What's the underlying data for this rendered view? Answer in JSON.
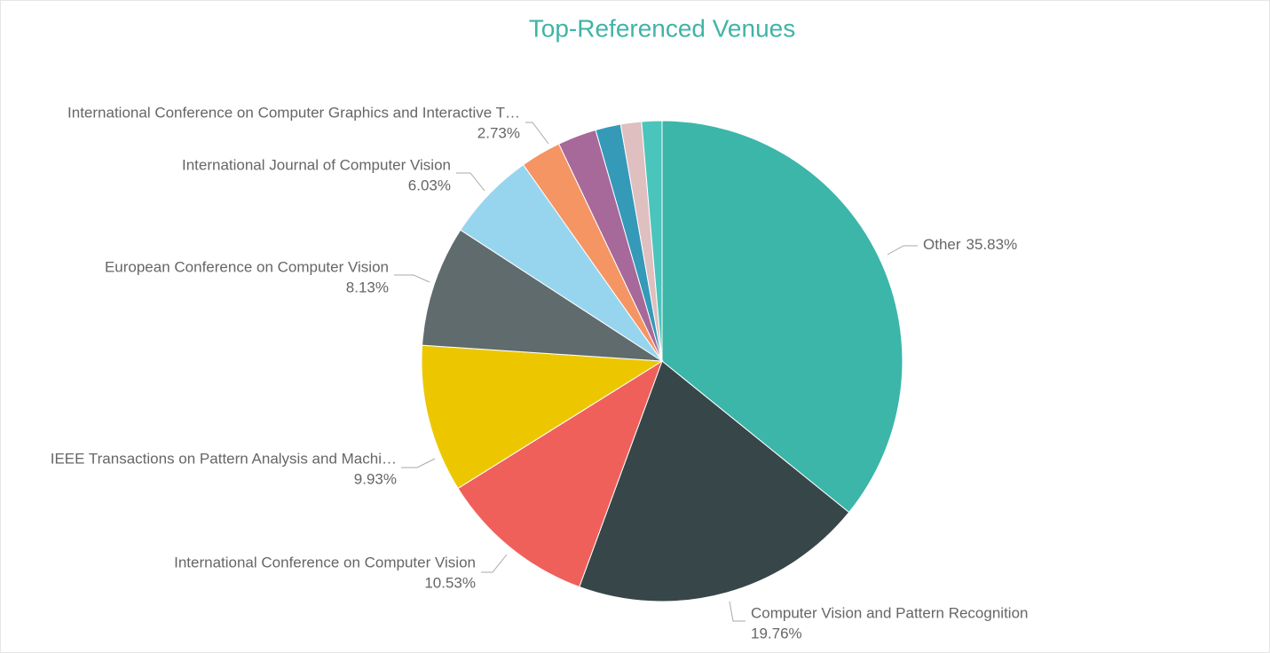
{
  "chart_data": {
    "type": "pie",
    "title": "Top-Referenced Venues",
    "categories": [
      "Other",
      "Computer Vision and Pattern Recognition",
      "International Conference on Computer Vision",
      "IEEE Transactions on Pattern Analysis and Machi…",
      "European Conference on Computer Vision",
      "International Journal of Computer Vision",
      "International Conference on Computer Graphics and Interactive T…",
      null,
      null,
      null,
      null
    ],
    "values": [
      35.83,
      19.76,
      10.53,
      9.93,
      8.13,
      6.03,
      2.73,
      2.6,
      1.7,
      1.4,
      1.36
    ],
    "value_labels": [
      "35.83%",
      "19.76%",
      "10.53%",
      "9.93%",
      "8.13%",
      "6.03%",
      "2.73%",
      null,
      null,
      null,
      null
    ],
    "colors": [
      "#3bb6a9",
      "#374649",
      "#f0605a",
      "#ecc700",
      "#5f6b6d",
      "#97d5ef",
      "#f59563",
      "#a66999",
      "#3599b8",
      "#dfbfbf",
      "#4ac5bb"
    ]
  }
}
